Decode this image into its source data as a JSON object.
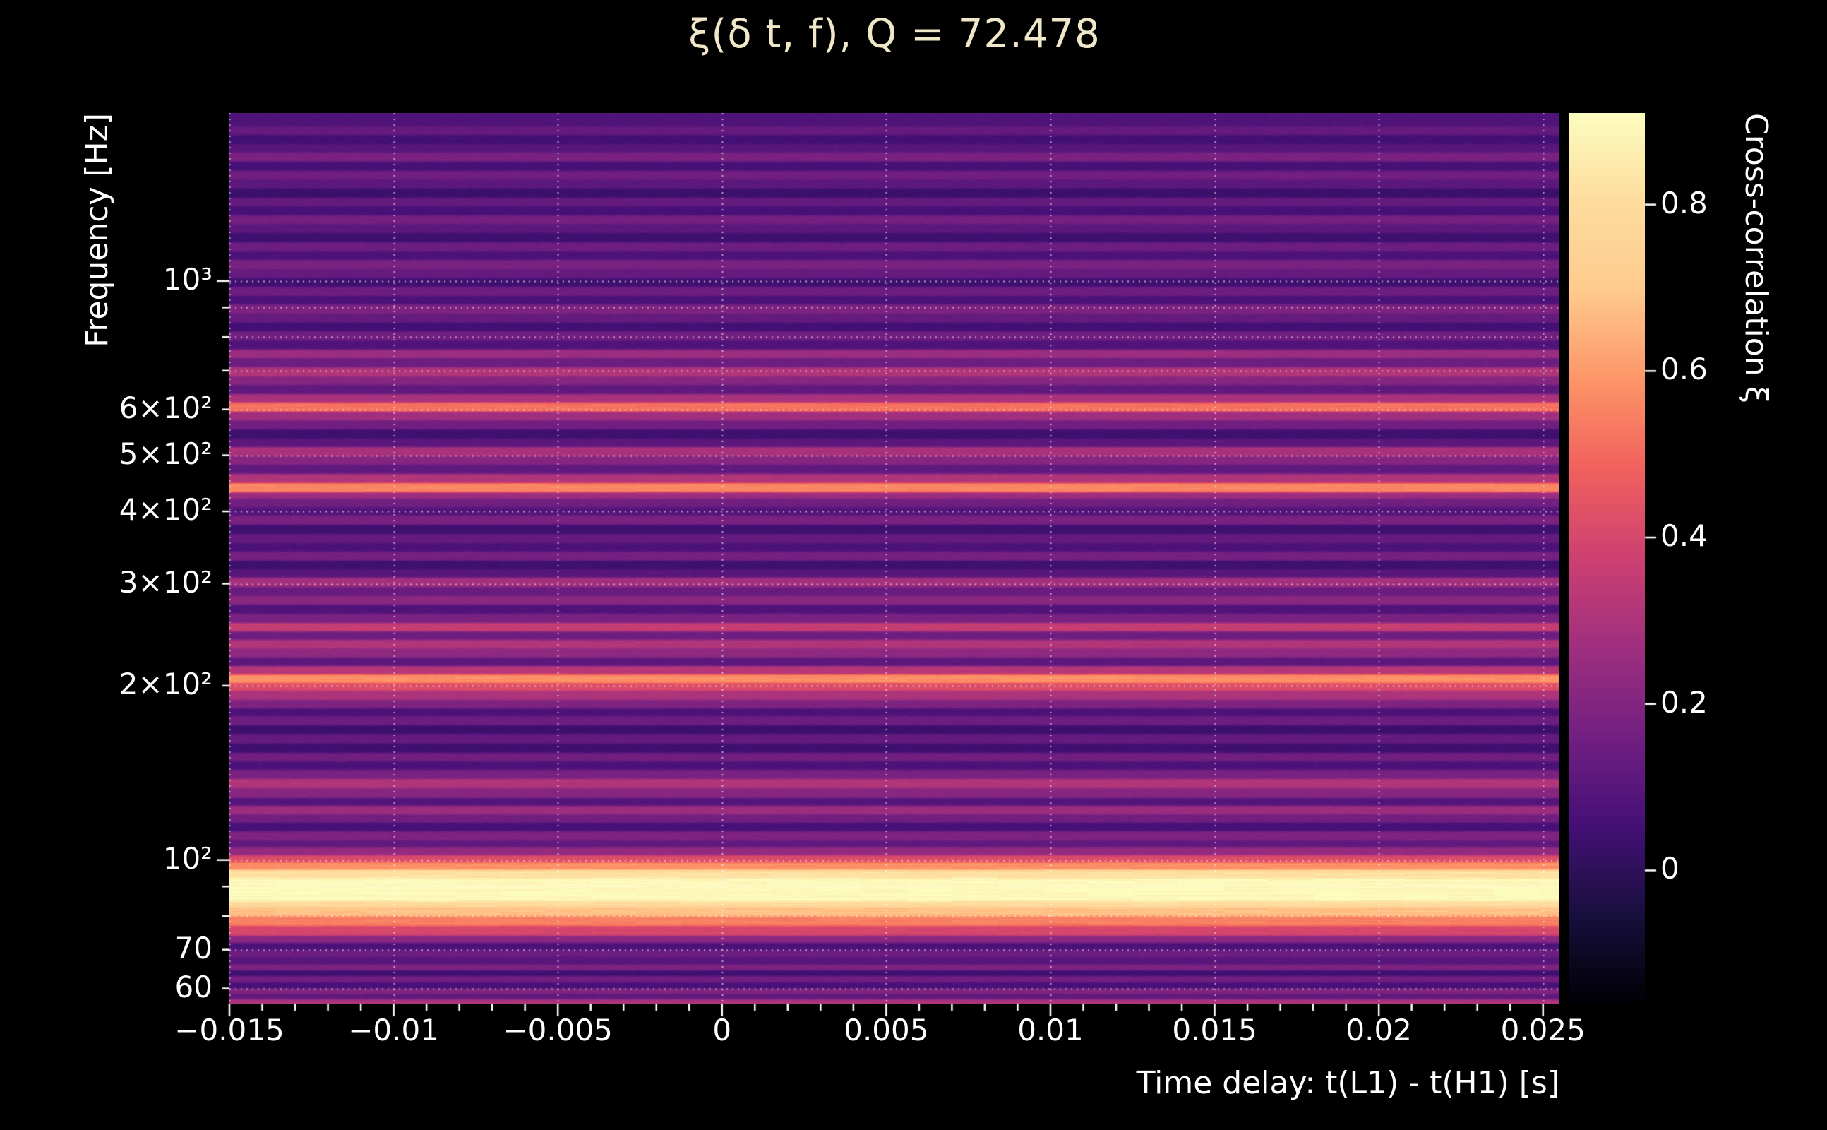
{
  "figure": {
    "title": "ξ(δ t, f), Q = 72.478",
    "background": "#000000",
    "text_color": "#ffffff",
    "title_color": "#f0e7c8"
  },
  "chart_data": {
    "type": "heatmap",
    "title": "ξ(δ t, f), Q = 72.478",
    "xlabel": "Time delay: t(L1) - t(H1) [s]",
    "ylabel": "Frequency [Hz]",
    "colorbar_label": "Cross-correlation ξ",
    "x_range_s": [
      -0.015,
      0.0255
    ],
    "freq_range_hz": [
      56.5,
      1950
    ],
    "y_scale": "log",
    "value_range": [
      -0.16,
      0.91
    ],
    "time_dependence": "constant",
    "grid": "dotted-white",
    "legend_position": "right-colorbar",
    "x_ticks": [
      {
        "v": -0.015,
        "label": "−0.015"
      },
      {
        "v": -0.01,
        "label": "−0.01"
      },
      {
        "v": -0.005,
        "label": "−0.005"
      },
      {
        "v": 0,
        "label": "0"
      },
      {
        "v": 0.005,
        "label": "0.005"
      },
      {
        "v": 0.01,
        "label": "0.01"
      },
      {
        "v": 0.015,
        "label": "0.015"
      },
      {
        "v": 0.02,
        "label": "0.02"
      },
      {
        "v": 0.025,
        "label": "0.025"
      }
    ],
    "x_minor_step": 0.001,
    "y_ticks": [
      {
        "v": 1000,
        "label": "10³"
      },
      {
        "v": 600,
        "label": "6×10²"
      },
      {
        "v": 500,
        "label": "5×10²"
      },
      {
        "v": 400,
        "label": "4×10²"
      },
      {
        "v": 300,
        "label": "3×10²"
      },
      {
        "v": 200,
        "label": "2×10²"
      },
      {
        "v": 100,
        "label": "10²"
      },
      {
        "v": 70,
        "label": "70"
      },
      {
        "v": 60,
        "label": "60"
      }
    ],
    "y_major_ticks": [
      100,
      1000
    ],
    "y_minor_ticks": [
      60,
      70,
      80,
      90,
      200,
      300,
      400,
      500,
      600,
      700,
      800,
      900
    ],
    "gridline_freqs": [
      60,
      70,
      80,
      90,
      100,
      200,
      300,
      400,
      500,
      600,
      700,
      800,
      900,
      1000
    ],
    "colorbar_ticks": [
      {
        "v": 0.8,
        "label": "0.8"
      },
      {
        "v": 0.6,
        "label": "0.6"
      },
      {
        "v": 0.4,
        "label": "0.4"
      },
      {
        "v": 0.2,
        "label": "0.2"
      },
      {
        "v": 0,
        "label": "0"
      }
    ],
    "colormap": "magma",
    "colormap_stops": [
      [
        0.0,
        "#000004"
      ],
      [
        0.1,
        "#180f3e"
      ],
      [
        0.2,
        "#451077"
      ],
      [
        0.3,
        "#721f81"
      ],
      [
        0.4,
        "#9f2f7f"
      ],
      [
        0.5,
        "#cd4071"
      ],
      [
        0.6,
        "#f1605d"
      ],
      [
        0.7,
        "#fd9567"
      ],
      [
        0.8,
        "#feca8d"
      ],
      [
        0.9,
        "#fddc9e"
      ],
      [
        1.0,
        "#fcfdbf"
      ]
    ],
    "baseline_xi": 0.03,
    "bands_hz_xi": [
      [
        56,
        57.5,
        0.3
      ],
      [
        57.5,
        58.8,
        0.12
      ],
      [
        58.8,
        60,
        0.2
      ],
      [
        60,
        61.5,
        0.06
      ],
      [
        61.5,
        63,
        0.16
      ],
      [
        63,
        64.5,
        0.04
      ],
      [
        64.5,
        66,
        0.19
      ],
      [
        66,
        68,
        0.1
      ],
      [
        68,
        70,
        0.15
      ],
      [
        70,
        72,
        0.07
      ],
      [
        72,
        74,
        0.22
      ],
      [
        74,
        77,
        0.4
      ],
      [
        77,
        80,
        0.55
      ],
      [
        80,
        83,
        0.68
      ],
      [
        83,
        85,
        0.8
      ],
      [
        85,
        93,
        0.9
      ],
      [
        93,
        96,
        0.82
      ],
      [
        96,
        99,
        0.58
      ],
      [
        99,
        102,
        0.42
      ],
      [
        102,
        105,
        0.24
      ],
      [
        105,
        108,
        0.12
      ],
      [
        108,
        112,
        0.19
      ],
      [
        112,
        116,
        0.06
      ],
      [
        116,
        120,
        0.16
      ],
      [
        120,
        124,
        0.26
      ],
      [
        124,
        128,
        0.09
      ],
      [
        128,
        133,
        0.21
      ],
      [
        133,
        138,
        0.31
      ],
      [
        138,
        143,
        0.18
      ],
      [
        143,
        148,
        0.07
      ],
      [
        148,
        153,
        0.16
      ],
      [
        153,
        159,
        0.04
      ],
      [
        159,
        165,
        0.13
      ],
      [
        165,
        171,
        0.03
      ],
      [
        171,
        177,
        0.15
      ],
      [
        177,
        183,
        0.07
      ],
      [
        183,
        189,
        0.19
      ],
      [
        189,
        196,
        0.3
      ],
      [
        196,
        202,
        0.42
      ],
      [
        202,
        209,
        0.58
      ],
      [
        209,
        216,
        0.32
      ],
      [
        216,
        224,
        0.11
      ],
      [
        224,
        232,
        0.23
      ],
      [
        232,
        240,
        0.31
      ],
      [
        240,
        248,
        0.15
      ],
      [
        248,
        257,
        0.36
      ],
      [
        257,
        266,
        0.18
      ],
      [
        266,
        276,
        0.08
      ],
      [
        276,
        286,
        0.22
      ],
      [
        286,
        296,
        0.14
      ],
      [
        296,
        307,
        0.28
      ],
      [
        307,
        318,
        0.1
      ],
      [
        318,
        329,
        0.04
      ],
      [
        329,
        341,
        0.17
      ],
      [
        341,
        353,
        0.07
      ],
      [
        353,
        366,
        0.13
      ],
      [
        366,
        379,
        0.04
      ],
      [
        379,
        393,
        0.18
      ],
      [
        393,
        407,
        0.09
      ],
      [
        407,
        421,
        0.16
      ],
      [
        421,
        432,
        0.26
      ],
      [
        432,
        448,
        0.56
      ],
      [
        448,
        464,
        0.31
      ],
      [
        464,
        481,
        0.12
      ],
      [
        481,
        498,
        0.21
      ],
      [
        498,
        516,
        0.29
      ],
      [
        516,
        535,
        0.11
      ],
      [
        535,
        554,
        0.04
      ],
      [
        554,
        574,
        0.16
      ],
      [
        574,
        594,
        0.27
      ],
      [
        594,
        616,
        0.52
      ],
      [
        616,
        638,
        0.29
      ],
      [
        638,
        661,
        0.12
      ],
      [
        661,
        685,
        0.21
      ],
      [
        685,
        710,
        0.31
      ],
      [
        710,
        735,
        0.15
      ],
      [
        735,
        762,
        0.26
      ],
      [
        762,
        789,
        0.08
      ],
      [
        789,
        818,
        0.16
      ],
      [
        818,
        847,
        0.05
      ],
      [
        847,
        878,
        0.13
      ],
      [
        878,
        910,
        0.19
      ],
      [
        910,
        943,
        0.07
      ],
      [
        943,
        977,
        0.15
      ],
      [
        977,
        1012,
        0.04
      ],
      [
        1012,
        1049,
        0.13
      ],
      [
        1049,
        1087,
        0.18
      ],
      [
        1087,
        1126,
        0.07
      ],
      [
        1126,
        1167,
        0.15
      ],
      [
        1167,
        1209,
        0.04
      ],
      [
        1209,
        1253,
        0.11
      ],
      [
        1253,
        1298,
        0.17
      ],
      [
        1298,
        1345,
        0.06
      ],
      [
        1345,
        1394,
        0.13
      ],
      [
        1394,
        1444,
        0.03
      ],
      [
        1444,
        1496,
        0.11
      ],
      [
        1496,
        1550,
        0.16
      ],
      [
        1550,
        1606,
        0.06
      ],
      [
        1606,
        1664,
        0.18
      ],
      [
        1664,
        1724,
        0.1
      ],
      [
        1724,
        1786,
        0.05
      ],
      [
        1786,
        1851,
        0.13
      ],
      [
        1851,
        1950,
        0.08
      ]
    ]
  }
}
